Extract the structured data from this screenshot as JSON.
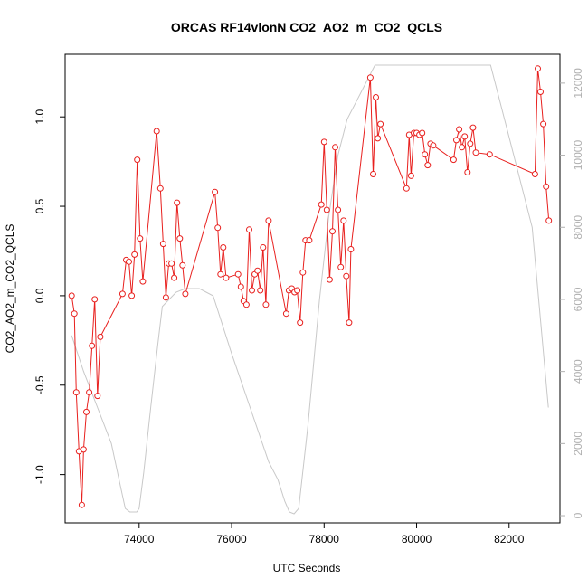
{
  "chart_data": {
    "type": "line",
    "title": "ORCAS RF14vlonN CO2_AO2_m_CO2_QCLS",
    "xlabel": "UTC Seconds",
    "ylabel": "CO2_AO2_m_CO2_QCLS",
    "xlim": [
      72400,
      83100
    ],
    "ylim": [
      -1.27,
      1.35
    ],
    "y2lim": [
      -200,
      12800
    ],
    "x_ticks": [
      74000,
      76000,
      78000,
      80000,
      82000
    ],
    "y_ticks": [
      -1.0,
      -0.5,
      0.0,
      0.5,
      1.0
    ],
    "y2_ticks": [
      0,
      2000,
      4000,
      6000,
      8000,
      10000,
      12000
    ],
    "x_tick_labels": [
      "74000",
      "76000",
      "78000",
      "80000",
      "82000"
    ],
    "y_tick_labels": [
      "-1.0",
      "-0.5",
      "0.0",
      "0.5",
      "1.0"
    ],
    "y2_tick_labels": [
      "0",
      "2000",
      "4000",
      "6000",
      "8000",
      "10000",
      "12000"
    ],
    "grid": false,
    "series": [
      {
        "axis": "left",
        "color": "#e8201e",
        "marker": "open-circle",
        "x": [
          72540,
          72600,
          72640,
          72700,
          72760,
          72800,
          72860,
          72920,
          72980,
          73040,
          73100,
          73160,
          73640,
          73720,
          73780,
          73840,
          73900,
          73960,
          74020,
          74080,
          74380,
          74460,
          74520,
          74580,
          74640,
          74700,
          74760,
          74820,
          74880,
          74940,
          75000,
          75640,
          75700,
          75760,
          75820,
          75880,
          76140,
          76200,
          76260,
          76320,
          76380,
          76440,
          76500,
          76560,
          76620,
          76680,
          76740,
          76800,
          77180,
          77240,
          77300,
          77360,
          77420,
          77480,
          77540,
          77600,
          77680,
          77940,
          78000,
          78060,
          78120,
          78180,
          78240,
          78300,
          78360,
          78420,
          78480,
          78540,
          78580,
          79000,
          79060,
          79120,
          79160,
          79220,
          79780,
          79840,
          79880,
          79940,
          80000,
          80060,
          80120,
          80180,
          80240,
          80300,
          80360,
          80800,
          80860,
          80920,
          80980,
          81040,
          81100,
          81160,
          81220,
          81280,
          81580,
          82560,
          82620,
          82680,
          82740,
          82800,
          82860
        ],
        "y": [
          0.0,
          -0.1,
          -0.54,
          -0.87,
          -1.17,
          -0.86,
          -0.65,
          -0.54,
          -0.28,
          -0.02,
          -0.56,
          -0.23,
          0.01,
          0.2,
          0.19,
          0.0,
          0.23,
          0.76,
          0.32,
          0.08,
          0.92,
          0.6,
          0.29,
          -0.01,
          0.18,
          0.18,
          0.1,
          0.52,
          0.32,
          0.17,
          0.01,
          0.58,
          0.38,
          0.12,
          0.27,
          0.1,
          0.12,
          0.05,
          -0.03,
          -0.05,
          0.37,
          0.03,
          0.12,
          0.14,
          0.03,
          0.27,
          -0.05,
          0.42,
          -0.1,
          0.03,
          0.04,
          0.02,
          0.03,
          -0.15,
          0.13,
          0.31,
          0.31,
          0.51,
          0.86,
          0.48,
          0.09,
          0.36,
          0.83,
          0.48,
          0.16,
          0.42,
          0.11,
          -0.15,
          0.26,
          1.22,
          0.68,
          1.11,
          0.88,
          0.96,
          0.6,
          0.9,
          0.67,
          0.91,
          0.91,
          0.9,
          0.91,
          0.79,
          0.73,
          0.85,
          0.84,
          0.76,
          0.87,
          0.93,
          0.83,
          0.89,
          0.69,
          0.85,
          0.94,
          0.8,
          0.79,
          0.68,
          1.27,
          1.14,
          0.96,
          0.61,
          0.42
        ]
      },
      {
        "axis": "right",
        "color": "#c8c8c8",
        "marker": "none",
        "x": [
          72540,
          72800,
          73100,
          73400,
          73600,
          73700,
          73800,
          73950,
          74000,
          74100,
          74250,
          74400,
          74500,
          74800,
          75000,
          75300,
          75600,
          76000,
          76400,
          76800,
          77000,
          77150,
          77250,
          77350,
          77450,
          77650,
          77900,
          78100,
          78300,
          78500,
          78700,
          78900,
          79100,
          79200,
          80000,
          81000,
          81600,
          82000,
          82500,
          82850
        ],
        "y": [
          5000,
          4000,
          3000,
          2000,
          800,
          200,
          100,
          100,
          200,
          1200,
          3000,
          4700,
          5800,
          6200,
          6300,
          6300,
          6100,
          4500,
          3000,
          1500,
          1000,
          400,
          100,
          50,
          200,
          2500,
          6000,
          8300,
          10000,
          11000,
          11500,
          12000,
          12500,
          12500,
          12500,
          12500,
          12500,
          10500,
          8000,
          3000
        ]
      }
    ]
  }
}
